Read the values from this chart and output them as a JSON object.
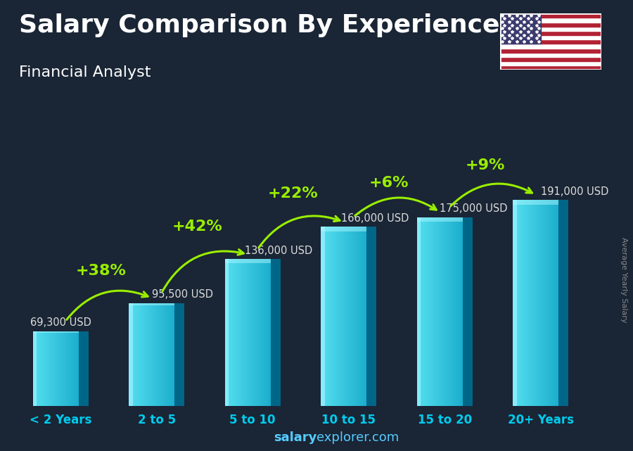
{
  "title": "Salary Comparison By Experience",
  "subtitle": "Financial Analyst",
  "categories": [
    "< 2 Years",
    "2 to 5",
    "5 to 10",
    "10 to 15",
    "15 to 20",
    "20+ Years"
  ],
  "values": [
    69300,
    95500,
    136000,
    166000,
    175000,
    191000
  ],
  "labels": [
    "69,300 USD",
    "95,500 USD",
    "136,000 USD",
    "166,000 USD",
    "175,000 USD",
    "191,000 USD"
  ],
  "pct_changes": [
    "+38%",
    "+42%",
    "+22%",
    "+6%",
    "+9%"
  ],
  "bar_face_color": "#29c4e0",
  "bar_left_color": "#60dff5",
  "bar_right_color": "#0088aa",
  "bar_top_color": "#80eeff",
  "bg_color": "#1a2535",
  "title_color": "#ffffff",
  "subtitle_color": "#ffffff",
  "label_color": "#dddddd",
  "pct_color": "#99ee00",
  "xlabel_color": "#00ccee",
  "ylabel_text": "Average Yearly Salary",
  "footer_salary": "salary",
  "footer_rest": "explorer.com",
  "footer_color": "#55ccff",
  "ylim": [
    0,
    230000
  ],
  "title_fontsize": 26,
  "subtitle_fontsize": 16,
  "label_fontsize": 10.5,
  "pct_fontsize": 16,
  "xtick_fontsize": 12,
  "footer_fontsize": 13,
  "ylabel_fontsize": 8
}
